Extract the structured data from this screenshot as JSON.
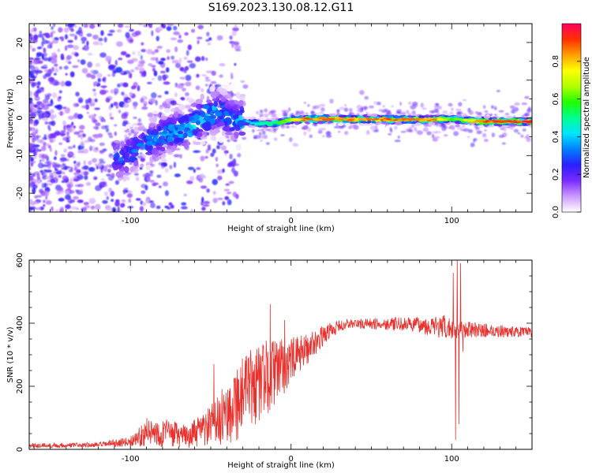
{
  "title": "S169.2023.130.08.12.G11",
  "chart_data": [
    {
      "type": "heatmap",
      "xlabel": "Height of straight line (km)",
      "ylabel": "Frequency (Hz)",
      "xlim": [
        -163,
        150
      ],
      "ylim": [
        -25,
        25
      ],
      "xticks": [
        -100,
        0,
        100
      ],
      "yticks": [
        -20,
        -10,
        0,
        10,
        20
      ],
      "colorbar": {
        "label": "Normalized spectral amplitude",
        "range": [
          0,
          1
        ],
        "ticks": [
          "0.0",
          "0.2",
          "0.4",
          "0.6",
          "0.8"
        ],
        "tick_values": [
          0,
          0.2,
          0.4,
          0.6,
          0.8
        ],
        "colormap": [
          "#ffffff",
          "#cc99ff",
          "#7a2bff",
          "#2a1fff",
          "#0080ff",
          "#00e5ff",
          "#00ff90",
          "#20ff00",
          "#b0ff00",
          "#ffff00",
          "#ffa000",
          "#ff3000",
          "#ff0060"
        ]
      },
      "ridge": [
        {
          "x": -160,
          "f": -8
        },
        {
          "x": -140,
          "f": -9
        },
        {
          "x": -120,
          "f": -10
        },
        {
          "x": -105,
          "f": -11
        },
        {
          "x": -95,
          "f": -8
        },
        {
          "x": -85,
          "f": -6
        },
        {
          "x": -75,
          "f": -4
        },
        {
          "x": -65,
          "f": -3
        },
        {
          "x": -55,
          "f": 0
        },
        {
          "x": -45,
          "f": 2
        },
        {
          "x": -38,
          "f": 0
        },
        {
          "x": -30,
          "f": -1
        },
        {
          "x": -20,
          "f": -1.5
        },
        {
          "x": -10,
          "f": -1.5
        },
        {
          "x": 0,
          "f": -0.5
        },
        {
          "x": 20,
          "f": -0.3
        },
        {
          "x": 50,
          "f": -0.4
        },
        {
          "x": 80,
          "f": -0.5
        },
        {
          "x": 100,
          "f": -0.3
        },
        {
          "x": 120,
          "f": -1
        },
        {
          "x": 150,
          "f": -1
        }
      ],
      "peak_amplitude": [
        {
          "x": -160,
          "a": 0.15
        },
        {
          "x": -130,
          "a": 0.2
        },
        {
          "x": -105,
          "a": 0.3
        },
        {
          "x": -90,
          "a": 0.35
        },
        {
          "x": -70,
          "a": 0.4
        },
        {
          "x": -55,
          "a": 0.45
        },
        {
          "x": -40,
          "a": 0.35
        },
        {
          "x": -25,
          "a": 0.45
        },
        {
          "x": -10,
          "a": 0.55
        },
        {
          "x": 0,
          "a": 0.7
        },
        {
          "x": 10,
          "a": 0.9
        },
        {
          "x": 30,
          "a": 0.85
        },
        {
          "x": 60,
          "a": 0.9
        },
        {
          "x": 90,
          "a": 0.85
        },
        {
          "x": 100,
          "a": 0.6
        },
        {
          "x": 120,
          "a": 0.9
        },
        {
          "x": 150,
          "a": 0.95
        }
      ]
    },
    {
      "type": "line",
      "xlabel": "Height of straight line (km)",
      "ylabel": "SNR (10 * v/v)",
      "xlim": [
        -163,
        150
      ],
      "ylim": [
        0,
        600
      ],
      "xticks": [
        -100,
        0,
        100
      ],
      "yticks": [
        0,
        200,
        400,
        600
      ],
      "color": "#e8302c",
      "envelope": [
        {
          "x": -163,
          "mean": 12,
          "amp": 8
        },
        {
          "x": -120,
          "mean": 14,
          "amp": 8
        },
        {
          "x": -100,
          "mean": 25,
          "amp": 15
        },
        {
          "x": -90,
          "mean": 55,
          "amp": 45
        },
        {
          "x": -75,
          "mean": 50,
          "amp": 45
        },
        {
          "x": -65,
          "mean": 40,
          "amp": 35
        },
        {
          "x": -55,
          "mean": 60,
          "amp": 55
        },
        {
          "x": -45,
          "mean": 90,
          "amp": 80
        },
        {
          "x": -35,
          "mean": 150,
          "amp": 130
        },
        {
          "x": -25,
          "mean": 190,
          "amp": 130
        },
        {
          "x": -15,
          "mean": 230,
          "amp": 120
        },
        {
          "x": -5,
          "mean": 260,
          "amp": 90
        },
        {
          "x": 5,
          "mean": 300,
          "amp": 60
        },
        {
          "x": 15,
          "mean": 340,
          "amp": 40
        },
        {
          "x": 25,
          "mean": 380,
          "amp": 25
        },
        {
          "x": 35,
          "mean": 398,
          "amp": 15
        },
        {
          "x": 60,
          "mean": 398,
          "amp": 20
        },
        {
          "x": 80,
          "mean": 395,
          "amp": 25
        },
        {
          "x": 95,
          "mean": 385,
          "amp": 40
        },
        {
          "x": 110,
          "mean": 380,
          "amp": 25
        },
        {
          "x": 150,
          "mean": 370,
          "amp": 15
        }
      ],
      "spikes": [
        {
          "x": -13,
          "y": 460
        },
        {
          "x": -4,
          "y": 410
        },
        {
          "x": -48,
          "y": 270
        },
        {
          "x": 101,
          "y": 560
        },
        {
          "x": 102.5,
          "y": 30
        },
        {
          "x": 103.5,
          "y": 600
        },
        {
          "x": 104.5,
          "y": 80
        },
        {
          "x": 105.5,
          "y": 590
        },
        {
          "x": 107,
          "y": 310
        }
      ]
    }
  ]
}
